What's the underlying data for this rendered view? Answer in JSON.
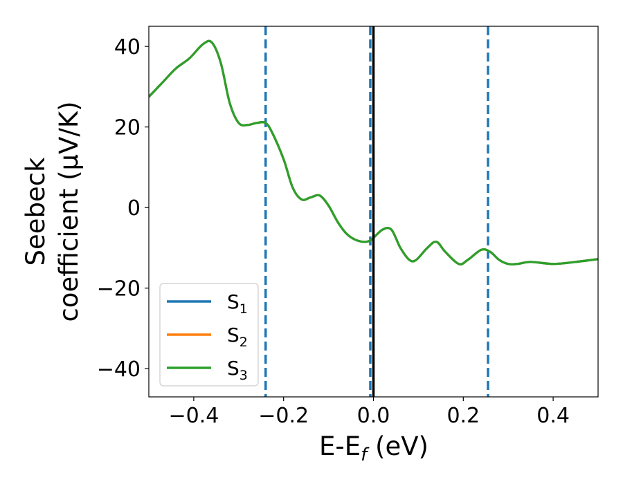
{
  "chart_data": {
    "type": "line",
    "xlabel": {
      "main": "E-E",
      "sub": "f",
      "suffix": " (eV)"
    },
    "ylabel": {
      "line1": "Seebeck",
      "line2": "coefficient  (μV/K)"
    },
    "xlim": [
      -0.5,
      0.5
    ],
    "ylim": [
      -47,
      45
    ],
    "x_ticks": [
      -0.4,
      -0.2,
      0.0,
      0.2,
      0.4
    ],
    "x_tick_labels": [
      "−0.4",
      "−0.2",
      "0.0",
      "0.2",
      "0.4"
    ],
    "y_ticks": [
      -40,
      -20,
      0,
      20,
      40
    ],
    "y_tick_labels": [
      "−40",
      "−20",
      "0",
      "20",
      "40"
    ],
    "grid": false,
    "legend_position": "lower-left",
    "vertical_lines": [
      {
        "x": -0.24,
        "style": "dashed",
        "color": "#1f77b4"
      },
      {
        "x": -0.007,
        "style": "dashed",
        "color": "#1f77b4"
      },
      {
        "x": 0.255,
        "style": "dashed",
        "color": "#1f77b4"
      },
      {
        "x": 0.0,
        "style": "solid",
        "color": "#000000"
      }
    ],
    "x": [
      -0.5,
      -0.47,
      -0.44,
      -0.41,
      -0.38,
      -0.36,
      -0.34,
      -0.32,
      -0.3,
      -0.28,
      -0.26,
      -0.24,
      -0.225,
      -0.2,
      -0.18,
      -0.16,
      -0.14,
      -0.12,
      -0.1,
      -0.08,
      -0.06,
      -0.04,
      -0.02,
      -0.005,
      0.02,
      0.04,
      0.06,
      0.08,
      0.095,
      0.12,
      0.14,
      0.16,
      0.19,
      0.21,
      0.24,
      0.26,
      0.28,
      0.3,
      0.32,
      0.35,
      0.4,
      0.45,
      0.5
    ],
    "series": [
      {
        "name": "S",
        "sub": "1",
        "color": "#1f77b4",
        "values": [
          27.5,
          31,
          34.5,
          37,
          40.5,
          41,
          36,
          26,
          21,
          20.5,
          21,
          21,
          18.5,
          12,
          5,
          2,
          2.5,
          3,
          0.5,
          -3.5,
          -6.5,
          -8,
          -8.5,
          -8,
          -5.5,
          -5.5,
          -10,
          -13,
          -13,
          -10,
          -8.5,
          -11,
          -14,
          -13,
          -10.5,
          -11,
          -13,
          -14,
          -14,
          -13.5,
          -14,
          -13.5,
          -12.8
        ]
      },
      {
        "name": "S",
        "sub": "2",
        "color": "#ff7f0e",
        "values": [
          27.5,
          31,
          34.5,
          37,
          40.5,
          41,
          36,
          26,
          21,
          20.5,
          21,
          21,
          18.5,
          12,
          5,
          2,
          2.5,
          3,
          0.5,
          -3.5,
          -6.5,
          -8,
          -8.5,
          -8,
          -5.5,
          -5.5,
          -10,
          -13,
          -13,
          -10,
          -8.5,
          -11,
          -14,
          -13,
          -10.5,
          -11,
          -13,
          -14,
          -14,
          -13.5,
          -14,
          -13.5,
          -12.8
        ]
      },
      {
        "name": "S",
        "sub": "3",
        "color": "#2ca02c",
        "values": [
          27.5,
          31,
          34.5,
          37,
          40.5,
          41,
          36,
          26,
          21,
          20.5,
          21,
          21,
          18.5,
          12,
          5,
          2,
          2.5,
          3,
          0.5,
          -3.5,
          -6.5,
          -8,
          -8.5,
          -8,
          -5.5,
          -5.5,
          -10,
          -13,
          -13,
          -10,
          -8.5,
          -11,
          -14,
          -13,
          -10.5,
          -11,
          -13,
          -14,
          -14,
          -13.5,
          -14,
          -13.5,
          -12.8
        ]
      }
    ]
  }
}
